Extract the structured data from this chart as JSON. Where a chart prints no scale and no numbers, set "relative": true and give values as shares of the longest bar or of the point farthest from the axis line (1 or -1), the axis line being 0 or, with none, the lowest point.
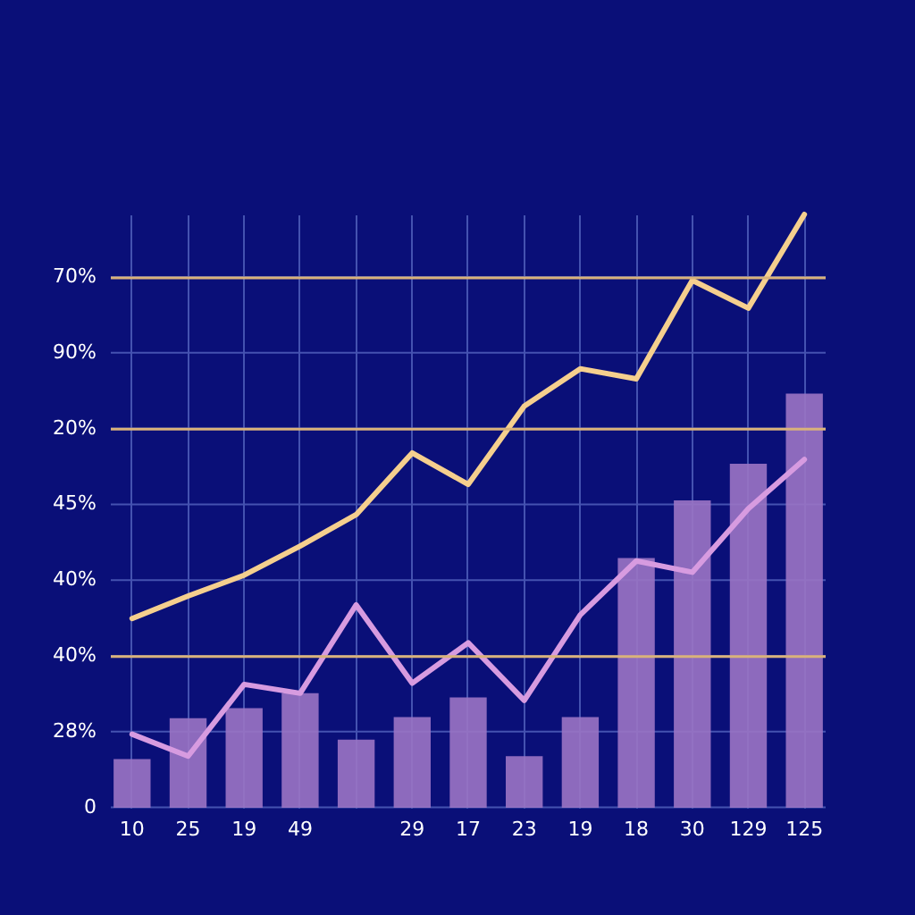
{
  "chart_data": {
    "type": "bar",
    "relative": true,
    "categories": [
      "10",
      "25",
      "19",
      "49",
      null,
      "29",
      "17",
      "23",
      "19",
      "18",
      "30",
      "129",
      "125"
    ],
    "annotations": [
      "70%",
      "90%",
      "20%",
      "45%",
      "40%",
      "40%",
      "28%",
      "0"
    ],
    "grid": true,
    "ref_lines": [
      {
        "axis": "y",
        "value": 0.893,
        "color": "#d9b27a"
      },
      {
        "axis": "y",
        "value": 0.638,
        "color": "#d9b27a"
      },
      {
        "axis": "y",
        "value": 0.255,
        "color": "#d9b27a"
      }
    ],
    "series": [
      {
        "color": "#9b74c4",
        "values": [
          0.082,
          0.151,
          0.168,
          0.193,
          0.115,
          0.153,
          0.186,
          0.087,
          0.153,
          0.421,
          0.518,
          0.58,
          0.698
        ]
      },
      {
        "type": "line",
        "color": "#f5cf8e",
        "values": [
          0.319,
          0.357,
          0.392,
          0.441,
          0.494,
          0.598,
          0.545,
          0.677,
          0.74,
          0.723,
          0.889,
          0.842,
          1
        ]
      },
      {
        "type": "line",
        "color": "#d79be0",
        "values": [
          0.124,
          0.087,
          0.208,
          0.193,
          0.342,
          0.21,
          0.278,
          0.181,
          0.325,
          0.416,
          0.397,
          0.504,
          0.587
        ]
      }
    ]
  }
}
